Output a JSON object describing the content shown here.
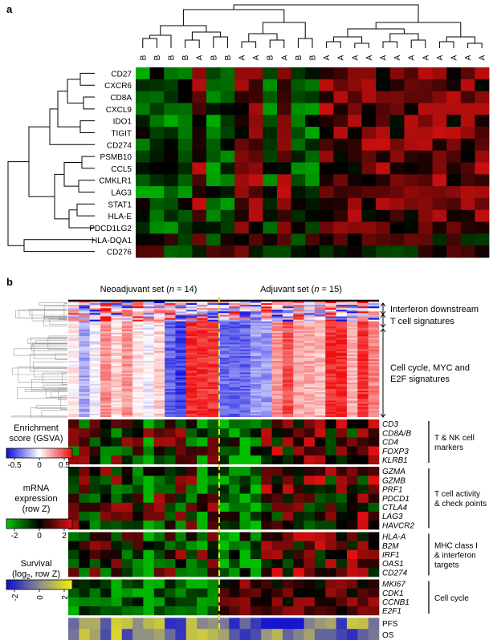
{
  "panel_a": {
    "label": "a",
    "columns": [
      "B",
      "B",
      "B",
      "B",
      "A",
      "B",
      "B",
      "A",
      "A",
      "B",
      "A",
      "B",
      "B",
      "A",
      "A",
      "A",
      "A",
      "A",
      "A",
      "A",
      "A",
      "A",
      "A",
      "A",
      "A"
    ],
    "rows": [
      "CD27",
      "CXCR6",
      "CD8A",
      "CXCL9",
      "IDO1",
      "TIGIT",
      "CD274",
      "PSMB10",
      "CCL5",
      "CMKLR1",
      "LAG3",
      "STAT1",
      "HLA-E",
      "PDCD1LG2",
      "HLA-DQA1",
      "CD276"
    ]
  },
  "panel_b": {
    "label": "b",
    "neoadjuvant_label": "Neoadjuvant set (",
    "neoadjuvant_n": "n",
    "neoadjuvant_count": " = 14)",
    "adjuvant_label": "Adjuvant set (",
    "adjuvant_n": "n",
    "adjuvant_count": " = 15)",
    "gsva_groups": [
      {
        "lines": [
          "Interferon downstream"
        ]
      },
      {
        "lines": [
          "T cell signatures"
        ]
      },
      {
        "lines": [
          "Cell cycle, MYC and",
          "E2F signatures"
        ]
      }
    ],
    "gene_blocks": [
      {
        "genes": [
          "CD3",
          "CD8A/B",
          "CD4",
          "FOXP3",
          "KLRB1"
        ],
        "group": [
          "T & NK cell",
          "markers"
        ]
      },
      {
        "genes": [
          "GZMA",
          "GZMB",
          "PRF1",
          "PDCD1",
          "CTLA4",
          "LAG3",
          "HAVCR2"
        ],
        "group": [
          "T cell activity",
          "& check points"
        ]
      },
      {
        "genes": [
          "HLA-A",
          "B2M",
          "IRF1",
          "OAS1",
          "CD274"
        ],
        "group": [
          "MHC class I",
          "& interferon",
          "targets"
        ]
      },
      {
        "genes": [
          "MKI67",
          "CDK1",
          "CCNB1",
          "E2F1"
        ],
        "group": [
          "Cell cycle"
        ]
      }
    ],
    "survival_rows": [
      "PFS",
      "OS"
    ],
    "legend_gsva": {
      "title": [
        "Enrichment",
        "score (GSVA)"
      ],
      "ticks": [
        "-0.5",
        "0",
        "0.5"
      ]
    },
    "legend_mrna": {
      "title": [
        "mRNA",
        "expression",
        "(row Z)"
      ],
      "ticks": [
        "-2",
        "0",
        "2"
      ]
    },
    "legend_survival": {
      "title": [
        "Survival",
        "(log",
        "2",
        ", row Z)"
      ],
      "ticks": [
        "-2",
        "0",
        "2"
      ]
    }
  },
  "colors": {
    "heat_low": "#00c000",
    "heat_mid": "#000000",
    "heat_high": "#e01010",
    "gsva_low": "#1010e0",
    "gsva_mid": "#ffffff",
    "gsva_high": "#f01010",
    "surv_low": "#1010d0",
    "surv_mid": "#8a8a8a",
    "surv_high": "#f2ee10",
    "divider": "#f5e000"
  }
}
